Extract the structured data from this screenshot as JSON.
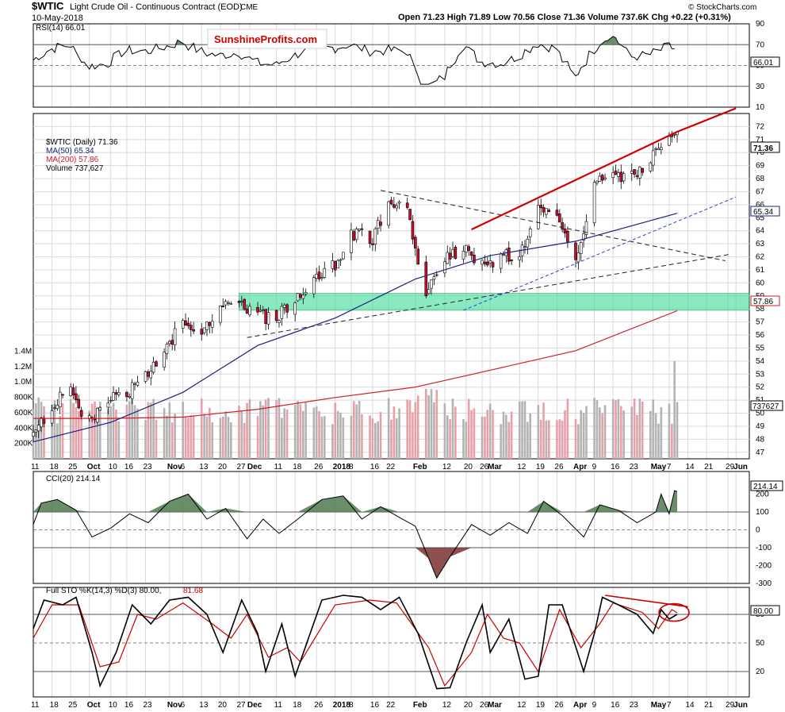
{
  "header": {
    "symbol": "$WTIC",
    "name": "Light Crude Oil - Continuous Contract (EOD)",
    "exchange": "CME",
    "date": "10-May-2018",
    "quote": "Open 71.23  High 71.89  Low 70.56  Close 71.36  Volume 737.6K  Chg +0.22 (+0.31%)",
    "copyright": "© StockCharts.com",
    "watermark": "SunshineProfits.com"
  },
  "legends": {
    "rsi": "RSI(14) 66.01",
    "price": "$WTIC (Daily) 71.36",
    "ma50": "MA(50) 65.34",
    "ma200": "MA(200) 57.86",
    "volume": "Volume 737,627",
    "cci": "CCI(20) 214.14",
    "sto_main": "Full STO %K(14,3) %D(3) 80.00,",
    "sto_d": "81.68"
  },
  "badges": {
    "rsi": "66.01",
    "price": "71.36",
    "ma50": "65.34",
    "ma200": "57.86",
    "volume": "737627",
    "cci": "214.14",
    "sto": "80.00"
  },
  "colors": {
    "up": "#ffffff",
    "down": "#c8102e",
    "ma50": "#1a237e",
    "ma200": "#cc1c2b",
    "trend_red": "#cc0000",
    "support_zone": "#3ddc97",
    "cci_positive": "#4f7a4f",
    "cci_negative": "#7a3030",
    "volume_up": "#b3b3b3",
    "volume_down": "#e8a0a8"
  },
  "x_axis": {
    "labels": [
      "11",
      "18",
      "25",
      "Oct",
      "10",
      "16",
      "23",
      "Nov",
      "6",
      "13",
      "20",
      "27",
      "Dec",
      "11",
      "18",
      "26",
      "2018",
      "8",
      "16",
      "22",
      "Feb",
      "12",
      "20",
      "26",
      "Mar",
      "12",
      "19",
      "26",
      "Apr",
      "9",
      "16",
      "23",
      "May",
      "7",
      "14",
      "21",
      "29",
      "Jun"
    ],
    "bold": [
      "Oct",
      "Nov",
      "Dec",
      "2018",
      "Feb",
      "Mar",
      "Apr",
      "May",
      "Jun"
    ]
  },
  "chart_data": [
    {
      "type": "line",
      "name": "RSI(14)",
      "ylim": [
        10,
        90
      ],
      "ticks": [
        90,
        70,
        50,
        30,
        10
      ],
      "last": 66.01
    },
    {
      "type": "candlestick",
      "name": "$WTIC (Daily)",
      "ylim": [
        46.5,
        73
      ],
      "ticks": [
        72,
        71,
        70,
        69,
        68,
        67,
        66,
        65,
        64,
        63,
        62,
        61,
        60,
        59,
        58,
        57,
        56,
        55,
        54,
        53,
        52,
        51,
        50,
        49,
        48,
        47
      ],
      "x_start": "2017-09-11",
      "x_end": "2018-05-10",
      "close_points": [
        [
          "2017-09-11",
          48.1
        ],
        [
          "2017-09-18",
          50.7
        ],
        [
          "2017-09-25",
          51.6
        ],
        [
          "2017-10-02",
          49.3
        ],
        [
          "2017-10-10",
          51.0
        ],
        [
          "2017-10-16",
          51.6
        ],
        [
          "2017-10-23",
          52.8
        ],
        [
          "2017-10-30",
          54.6
        ],
        [
          "2017-11-06",
          57.0
        ],
        [
          "2017-11-13",
          56.6
        ],
        [
          "2017-11-20",
          58.0
        ],
        [
          "2017-11-27",
          58.4
        ],
        [
          "2017-12-04",
          57.4
        ],
        [
          "2017-12-11",
          57.3
        ],
        [
          "2017-12-18",
          58.5
        ],
        [
          "2017-12-26",
          60.4
        ],
        [
          "2018-01-02",
          61.5
        ],
        [
          "2018-01-08",
          63.8
        ],
        [
          "2018-01-16",
          63.4
        ],
        [
          "2018-01-22",
          66.1
        ],
        [
          "2018-01-29",
          65.5
        ],
        [
          "2018-02-05",
          59.2
        ],
        [
          "2018-02-12",
          61.7
        ],
        [
          "2018-02-20",
          62.8
        ],
        [
          "2018-02-26",
          61.3
        ],
        [
          "2018-03-05",
          62.0
        ],
        [
          "2018-03-12",
          62.3
        ],
        [
          "2018-03-19",
          65.9
        ],
        [
          "2018-03-26",
          64.9
        ],
        [
          "2018-04-02",
          62.0
        ],
        [
          "2018-04-09",
          67.4
        ],
        [
          "2018-04-16",
          68.4
        ],
        [
          "2018-04-23",
          68.1
        ],
        [
          "2018-04-30",
          69.7
        ],
        [
          "2018-05-07",
          71.2
        ],
        [
          "2018-05-10",
          71.36
        ]
      ],
      "ma50_points": [
        [
          "2017-09-11",
          47.8
        ],
        [
          "2017-10-10",
          49.3
        ],
        [
          "2017-11-06",
          51.6
        ],
        [
          "2017-12-04",
          55.2
        ],
        [
          "2018-01-02",
          57.3
        ],
        [
          "2018-02-01",
          60.3
        ],
        [
          "2018-03-01",
          62.1
        ],
        [
          "2018-04-02",
          63.2
        ],
        [
          "2018-05-10",
          65.34
        ]
      ],
      "ma200_points": [
        [
          "2017-09-11",
          49.6
        ],
        [
          "2017-10-10",
          49.6
        ],
        [
          "2017-11-06",
          49.7
        ],
        [
          "2017-12-04",
          50.3
        ],
        [
          "2018-01-02",
          51.2
        ],
        [
          "2018-02-01",
          52.0
        ],
        [
          "2018-03-01",
          53.3
        ],
        [
          "2018-04-02",
          54.8
        ],
        [
          "2018-05-10",
          57.86
        ]
      ],
      "support_zone": [
        57.9,
        59.2
      ],
      "support_zone_from": "2017-11-27",
      "red_channel": [
        [
          "2018-02-22",
          64.1
        ],
        [
          "2018-05-10",
          71.6
        ],
        [
          "2018-06-01",
          73.4
        ]
      ],
      "dashed_black_down": [
        [
          "2018-01-19",
          67.1
        ],
        [
          "2018-05-28",
          61.7
        ]
      ],
      "dashed_black_up": [
        [
          "2017-11-30",
          55.8
        ],
        [
          "2018-05-30",
          62.2
        ]
      ],
      "dashed_blue_up": [
        [
          "2018-02-19",
          57.9
        ],
        [
          "2018-06-01",
          66.6
        ]
      ]
    },
    {
      "type": "bar",
      "name": "Volume",
      "ylim": [
        0,
        1600000
      ],
      "ticks": [
        "1.4M",
        "1.2M",
        "1.0M",
        "800K",
        "600K",
        "400K",
        "200K"
      ],
      "tick_values": [
        1400000,
        1200000,
        1000000,
        800000,
        600000,
        400000,
        200000
      ],
      "last": 737627,
      "peak": [
        "2018-05-09",
        1270000
      ]
    },
    {
      "type": "area",
      "name": "CCI(20)",
      "ylim": [
        -300,
        300
      ],
      "ticks": [
        200,
        100,
        0,
        -100,
        -200,
        -300
      ],
      "points": [
        [
          "2017-09-11",
          30
        ],
        [
          "2017-09-14",
          150
        ],
        [
          "2017-09-20",
          170
        ],
        [
          "2017-09-27",
          110
        ],
        [
          "2017-10-03",
          -40
        ],
        [
          "2017-10-10",
          10
        ],
        [
          "2017-10-17",
          90
        ],
        [
          "2017-10-24",
          40
        ],
        [
          "2017-11-01",
          160
        ],
        [
          "2017-11-08",
          200
        ],
        [
          "2017-11-15",
          60
        ],
        [
          "2017-11-22",
          120
        ],
        [
          "2017-11-30",
          -50
        ],
        [
          "2017-12-06",
          60
        ],
        [
          "2017-12-12",
          -20
        ],
        [
          "2017-12-19",
          60
        ],
        [
          "2017-12-28",
          170
        ],
        [
          "2018-01-05",
          190
        ],
        [
          "2018-01-12",
          60
        ],
        [
          "2018-01-19",
          130
        ],
        [
          "2018-01-26",
          70
        ],
        [
          "2018-02-01",
          20
        ],
        [
          "2018-02-06",
          -160
        ],
        [
          "2018-02-09",
          -270
        ],
        [
          "2018-02-14",
          -150
        ],
        [
          "2018-02-22",
          30
        ],
        [
          "2018-03-01",
          -30
        ],
        [
          "2018-03-08",
          40
        ],
        [
          "2018-03-15",
          -20
        ],
        [
          "2018-03-21",
          160
        ],
        [
          "2018-03-28",
          80
        ],
        [
          "2018-04-05",
          -40
        ],
        [
          "2018-04-11",
          140
        ],
        [
          "2018-04-18",
          110
        ],
        [
          "2018-04-25",
          40
        ],
        [
          "2018-05-02",
          100
        ],
        [
          "2018-05-04",
          200
        ],
        [
          "2018-05-07",
          90
        ],
        [
          "2018-05-09",
          220
        ],
        [
          "2018-05-10",
          214.14
        ]
      ],
      "last": 214.14
    },
    {
      "type": "line",
      "name": "Full STO %K(14,3) %D(3)",
      "ylim": [
        0,
        100
      ],
      "ticks": [
        80,
        50,
        20
      ],
      "k_points": [
        [
          "2017-09-11",
          65
        ],
        [
          "2017-09-15",
          95
        ],
        [
          "2017-09-22",
          90
        ],
        [
          "2017-09-27",
          98
        ],
        [
          "2017-10-03",
          40
        ],
        [
          "2017-10-06",
          5
        ],
        [
          "2017-10-12",
          40
        ],
        [
          "2017-10-18",
          90
        ],
        [
          "2017-10-25",
          70
        ],
        [
          "2017-11-01",
          95
        ],
        [
          "2017-11-08",
          98
        ],
        [
          "2017-11-15",
          80
        ],
        [
          "2017-11-21",
          40
        ],
        [
          "2017-11-28",
          95
        ],
        [
          "2017-12-04",
          60
        ],
        [
          "2017-12-07",
          20
        ],
        [
          "2017-12-13",
          70
        ],
        [
          "2017-12-18",
          15
        ],
        [
          "2017-12-28",
          95
        ],
        [
          "2018-01-05",
          100
        ],
        [
          "2018-01-12",
          98
        ],
        [
          "2018-01-19",
          85
        ],
        [
          "2018-01-26",
          98
        ],
        [
          "2018-02-02",
          60
        ],
        [
          "2018-02-09",
          2
        ],
        [
          "2018-02-14",
          3
        ],
        [
          "2018-02-20",
          50
        ],
        [
          "2018-02-26",
          90
        ],
        [
          "2018-03-01",
          40
        ],
        [
          "2018-03-08",
          75
        ],
        [
          "2018-03-14",
          12
        ],
        [
          "2018-03-19",
          15
        ],
        [
          "2018-03-23",
          90
        ],
        [
          "2018-03-28",
          90
        ],
        [
          "2018-04-05",
          20
        ],
        [
          "2018-04-09",
          60
        ],
        [
          "2018-04-12",
          98
        ],
        [
          "2018-04-18",
          90
        ],
        [
          "2018-04-25",
          80
        ],
        [
          "2018-05-01",
          60
        ],
        [
          "2018-05-04",
          85
        ],
        [
          "2018-05-07",
          75
        ],
        [
          "2018-05-10",
          80
        ]
      ],
      "d_points": [
        [
          "2017-09-11",
          55
        ],
        [
          "2017-09-18",
          90
        ],
        [
          "2017-09-28",
          90
        ],
        [
          "2017-10-06",
          25
        ],
        [
          "2017-10-13",
          30
        ],
        [
          "2017-10-20",
          80
        ],
        [
          "2017-10-27",
          75
        ],
        [
          "2017-11-06",
          92
        ],
        [
          "2017-11-17",
          70
        ],
        [
          "2017-11-24",
          55
        ],
        [
          "2017-11-30",
          80
        ],
        [
          "2017-12-08",
          35
        ],
        [
          "2017-12-15",
          45
        ],
        [
          "2017-12-20",
          30
        ],
        [
          "2018-01-02",
          90
        ],
        [
          "2018-01-15",
          95
        ],
        [
          "2018-01-25",
          92
        ],
        [
          "2018-02-06",
          45
        ],
        [
          "2018-02-12",
          5
        ],
        [
          "2018-02-22",
          40
        ],
        [
          "2018-02-28",
          80
        ],
        [
          "2018-03-06",
          55
        ],
        [
          "2018-03-12",
          50
        ],
        [
          "2018-03-19",
          20
        ],
        [
          "2018-03-27",
          85
        ],
        [
          "2018-04-04",
          45
        ],
        [
          "2018-04-11",
          70
        ],
        [
          "2018-04-16",
          92
        ],
        [
          "2018-04-27",
          82
        ],
        [
          "2018-05-03",
          65
        ],
        [
          "2018-05-08",
          85
        ],
        [
          "2018-05-10",
          81.68
        ]
      ],
      "last_k": 80.0,
      "last_d": 81.68,
      "divergence_line": [
        [
          "2018-04-13",
          100
        ],
        [
          "2018-05-14",
          88
        ]
      ]
    }
  ]
}
